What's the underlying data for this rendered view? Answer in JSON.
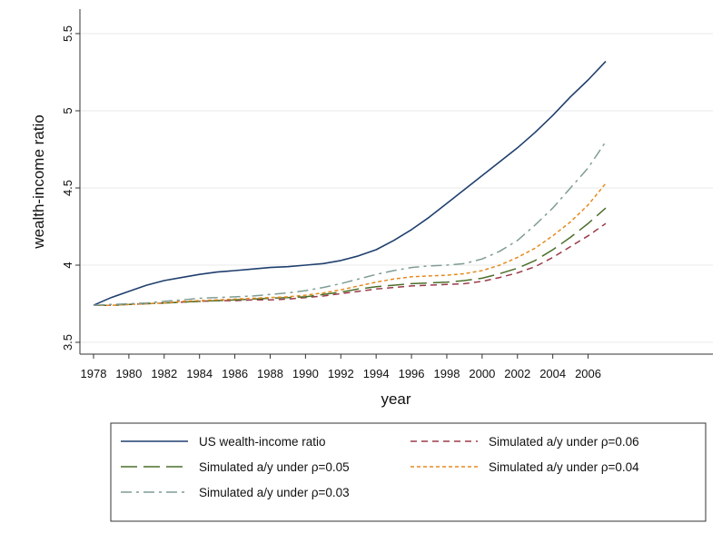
{
  "chart_data": {
    "type": "line",
    "xlabel": "year",
    "ylabel": "wealth-income ratio",
    "xlim": [
      1978,
      2007
    ],
    "ylim": [
      3.5,
      5.5
    ],
    "x_ticks": [
      1978,
      1980,
      1982,
      1984,
      1986,
      1988,
      1990,
      1992,
      1994,
      1996,
      1998,
      2000,
      2002,
      2004,
      2006
    ],
    "x_tick_labels": [
      "1978",
      "1980",
      "1982",
      "1984",
      "1986",
      "1988",
      "1990",
      "1992",
      "1994",
      "1996",
      "1998",
      "2000",
      "2002",
      "2004",
      "2006"
    ],
    "y_ticks": [
      3.5,
      4,
      4.5,
      5,
      5.5
    ],
    "y_tick_labels": [
      "3.5",
      "4",
      "4.5",
      "5",
      "5.5"
    ],
    "grid": "horizontal",
    "legend_position": "bottom",
    "x": [
      1978,
      1979,
      1980,
      1981,
      1982,
      1983,
      1984,
      1985,
      1986,
      1987,
      1988,
      1989,
      1990,
      1991,
      1992,
      1993,
      1994,
      1995,
      1996,
      1997,
      1998,
      1999,
      2000,
      2001,
      2002,
      2003,
      2004,
      2005,
      2006,
      2007
    ],
    "series": [
      {
        "name": "US wealth-income ratio",
        "color": "#1f3f6e",
        "dash": "solid",
        "values": [
          3.74,
          3.79,
          3.83,
          3.87,
          3.9,
          3.92,
          3.94,
          3.955,
          3.965,
          3.975,
          3.985,
          3.99,
          4.0,
          4.01,
          4.03,
          4.06,
          4.1,
          4.16,
          4.23,
          4.31,
          4.4,
          4.49,
          4.58,
          4.67,
          4.76,
          4.86,
          4.97,
          5.09,
          5.2,
          5.32
        ]
      },
      {
        "name": "Simulated a/y under ρ=0.06",
        "color": "#9b3a4a",
        "dash": "short-dash",
        "values": [
          3.74,
          3.74,
          3.745,
          3.75,
          3.755,
          3.76,
          3.765,
          3.77,
          3.77,
          3.775,
          3.775,
          3.78,
          3.79,
          3.8,
          3.815,
          3.83,
          3.845,
          3.855,
          3.865,
          3.87,
          3.875,
          3.88,
          3.895,
          3.92,
          3.95,
          3.99,
          4.05,
          4.12,
          4.19,
          4.27
        ]
      },
      {
        "name": "Simulated a/y under ρ=0.05",
        "color": "#4b6f2a",
        "dash": "long-dash",
        "values": [
          3.74,
          3.74,
          3.745,
          3.75,
          3.755,
          3.76,
          3.765,
          3.77,
          3.775,
          3.78,
          3.785,
          3.79,
          3.795,
          3.81,
          3.825,
          3.845,
          3.86,
          3.87,
          3.88,
          3.885,
          3.89,
          3.9,
          3.915,
          3.945,
          3.98,
          4.03,
          4.1,
          4.18,
          4.27,
          4.37
        ]
      },
      {
        "name": "Simulated a/y under ρ=0.04",
        "color": "#e58a1e",
        "dash": "dot",
        "values": [
          3.74,
          3.74,
          3.745,
          3.75,
          3.755,
          3.765,
          3.77,
          3.775,
          3.78,
          3.785,
          3.79,
          3.795,
          3.805,
          3.82,
          3.84,
          3.865,
          3.89,
          3.91,
          3.925,
          3.93,
          3.935,
          3.945,
          3.965,
          4.0,
          4.05,
          4.11,
          4.19,
          4.28,
          4.39,
          4.53
        ]
      },
      {
        "name": "Simulated a/y under ρ=0.03",
        "color": "#7f9c96",
        "dash": "dash-dot",
        "values": [
          3.74,
          3.745,
          3.75,
          3.755,
          3.765,
          3.775,
          3.785,
          3.79,
          3.795,
          3.8,
          3.81,
          3.82,
          3.835,
          3.855,
          3.88,
          3.91,
          3.94,
          3.965,
          3.985,
          3.995,
          4.0,
          4.01,
          4.04,
          4.09,
          4.16,
          4.26,
          4.37,
          4.5,
          4.63,
          4.8
        ]
      }
    ]
  }
}
